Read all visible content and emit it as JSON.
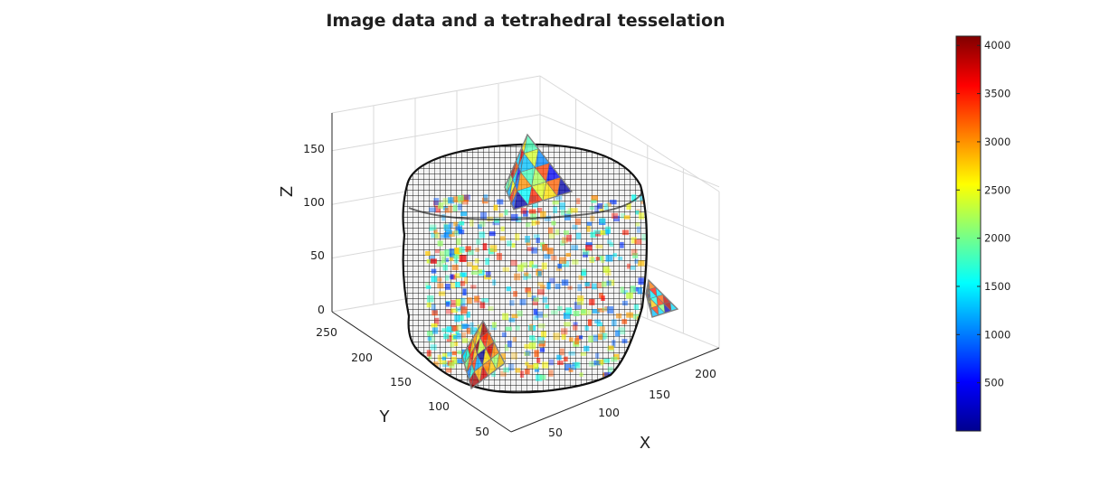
{
  "chart_data": {
    "type": "volume-3d",
    "title": "Image data and a tetrahedral tesselation",
    "axes": {
      "x": {
        "label": "X",
        "ticks": [
          "50",
          "100",
          "150",
          "200"
        ]
      },
      "y": {
        "label": "Y",
        "ticks": [
          "50",
          "100",
          "150",
          "200",
          "250"
        ]
      },
      "z": {
        "label": "Z",
        "ticks": [
          "0",
          "50",
          "100",
          "150"
        ]
      }
    },
    "grid": true,
    "colorbar": {
      "colormap": "jet",
      "range": [
        0,
        4096
      ],
      "ticks": [
        "500",
        "1000",
        "1500",
        "2000",
        "2500",
        "3000",
        "3500",
        "4000"
      ]
    },
    "colors": {
      "voxel_edge": "#1a1a1a",
      "voxel_face": "#f2f2f2",
      "grid": "#d9d9d9",
      "axis": "#262626",
      "tetra_edge": "#6b6b6b"
    }
  }
}
